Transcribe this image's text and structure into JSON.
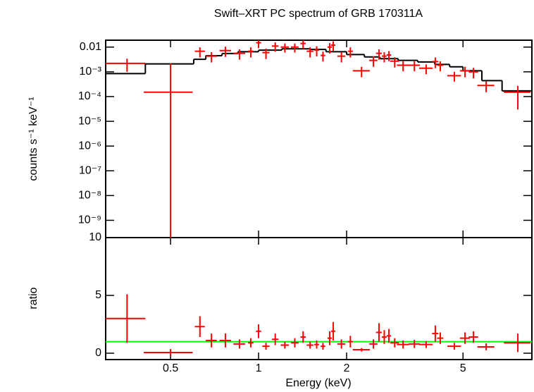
{
  "chart_data": [
    {
      "type": "scatter",
      "title": "Swift–XRT PC spectrum of GRB 170311A",
      "ylabel": "counts s⁻¹ keV⁻¹",
      "log_x": true,
      "log_y": true,
      "color": "#ff0000",
      "xlim": [
        0.3,
        8.6
      ],
      "ylim": [
        2e-10,
        0.019
      ],
      "yticks": [
        0.01,
        {
          "value": 0.001,
          "label": "10⁻³"
        },
        {
          "value": 0.0001,
          "label": "10⁻⁴"
        },
        {
          "value": 1e-05,
          "label": "10⁻⁵"
        },
        {
          "value": 1e-06,
          "label": "10⁻⁶"
        },
        {
          "value": 1e-07,
          "label": "10⁻⁷"
        },
        {
          "value": 1e-08,
          "label": "10⁻⁸"
        },
        {
          "value": 1e-09,
          "label": "10⁻⁹"
        }
      ],
      "x": [
        0.355,
        0.5,
        0.63,
        0.69,
        0.77,
        0.86,
        0.94,
        1.0,
        1.06,
        1.14,
        1.23,
        1.33,
        1.42,
        1.5,
        1.58,
        1.66,
        1.75,
        1.8,
        1.92,
        2.06,
        2.25,
        2.47,
        2.58,
        2.69,
        2.79,
        2.92,
        3.12,
        3.41,
        3.74,
        4.02,
        4.18,
        4.67,
        5.08,
        5.43,
        6.0,
        7.7
      ],
      "xerr": [
        0.055,
        0.095,
        0.025,
        0.03,
        0.035,
        0.04,
        0.02,
        0.02,
        0.03,
        0.03,
        0.04,
        0.04,
        0.03,
        0.04,
        0.03,
        0.03,
        0.03,
        0.03,
        0.06,
        0.04,
        0.15,
        0.08,
        0.06,
        0.05,
        0.05,
        0.1,
        0.15,
        0.15,
        0.2,
        0.1,
        0.1,
        0.25,
        0.2,
        0.2,
        0.4,
        0.8
      ],
      "values": [
        0.0022,
        0.00015,
        0.0068,
        0.0043,
        0.0072,
        0.0056,
        0.0068,
        0.015,
        0.006,
        0.011,
        0.01,
        0.01,
        0.014,
        0.0068,
        0.0075,
        0.0046,
        0.01,
        0.012,
        0.0043,
        0.0068,
        0.0011,
        0.0029,
        0.0056,
        0.0043,
        0.0048,
        0.0027,
        0.00185,
        0.00185,
        0.0014,
        0.0026,
        0.00185,
        0.0007,
        0.0011,
        0.001,
        0.00028,
        0.00015
      ],
      "yerr": [
        0.0012,
        0.00205,
        0.003,
        0.0019,
        0.0032,
        0.0025,
        0.003,
        0.006,
        0.0027,
        0.0045,
        0.004,
        0.004,
        0.0055,
        0.003,
        0.0033,
        0.002,
        0.0045,
        0.005,
        0.0019,
        0.003,
        0.0005,
        0.0013,
        0.0025,
        0.0019,
        0.0021,
        0.0012,
        0.0008,
        0.0008,
        0.0006,
        0.0012,
        0.0008,
        0.0003,
        0.0005,
        0.00045,
        0.00013,
        0.00012
      ],
      "model": {
        "color": "#000000",
        "edges": [
          0.3,
          0.41,
          0.6,
          0.66,
          0.75,
          0.85,
          1.0,
          1.2,
          1.5,
          1.7,
          2.0,
          2.3,
          2.6,
          3.0,
          3.5,
          4.0,
          4.5,
          5.0,
          5.8,
          6.8,
          8.6
        ],
        "values": [
          0.00085,
          0.0021,
          0.0032,
          0.0045,
          0.0055,
          0.0065,
          0.0075,
          0.0085,
          0.008,
          0.0065,
          0.005,
          0.004,
          0.0034,
          0.0029,
          0.0025,
          0.002,
          0.0016,
          0.0011,
          0.00044,
          0.00017
        ]
      }
    },
    {
      "type": "scatter",
      "ylabel": "ratio",
      "xlabel": "Energy (keV)",
      "log_x": true,
      "color": "#ff0000",
      "xlim": [
        0.3,
        8.6
      ],
      "ylim": [
        -0.55,
        10
      ],
      "xticks": [
        0.5,
        1,
        2,
        5
      ],
      "yticks": [
        0,
        5,
        10
      ],
      "reference": {
        "value": 1,
        "color": "#00ff00"
      },
      "x": [
        0.355,
        0.5,
        0.63,
        0.69,
        0.77,
        0.86,
        0.94,
        1.0,
        1.06,
        1.14,
        1.23,
        1.33,
        1.42,
        1.5,
        1.58,
        1.66,
        1.75,
        1.8,
        1.92,
        2.06,
        2.25,
        2.47,
        2.58,
        2.69,
        2.79,
        2.92,
        3.12,
        3.41,
        3.74,
        4.02,
        4.18,
        4.67,
        5.08,
        5.43,
        6.0,
        7.7
      ],
      "xerr": [
        0.055,
        0.095,
        0.025,
        0.03,
        0.035,
        0.04,
        0.02,
        0.02,
        0.03,
        0.03,
        0.04,
        0.04,
        0.03,
        0.04,
        0.03,
        0.03,
        0.03,
        0.03,
        0.06,
        0.04,
        0.15,
        0.08,
        0.06,
        0.05,
        0.05,
        0.1,
        0.15,
        0.15,
        0.2,
        0.1,
        0.1,
        0.25,
        0.2,
        0.2,
        0.4,
        0.8
      ],
      "values": [
        3.0,
        0.06,
        2.3,
        1.1,
        1.1,
        0.8,
        0.9,
        1.9,
        0.6,
        1.2,
        0.7,
        0.9,
        1.4,
        0.7,
        0.75,
        0.6,
        1.3,
        1.9,
        0.8,
        1.0,
        0.3,
        0.8,
        1.8,
        1.4,
        1.5,
        0.9,
        0.75,
        0.8,
        0.75,
        1.7,
        1.3,
        0.6,
        1.3,
        1.4,
        0.55,
        0.9
      ],
      "yerr": [
        2.1,
        0.3,
        0.9,
        0.6,
        0.6,
        0.4,
        0.4,
        0.6,
        0.3,
        0.5,
        0.3,
        0.4,
        0.5,
        0.3,
        0.35,
        0.3,
        0.6,
        0.8,
        0.4,
        0.5,
        0.15,
        0.4,
        0.8,
        0.6,
        0.6,
        0.4,
        0.35,
        0.35,
        0.3,
        0.7,
        0.5,
        0.3,
        0.5,
        0.5,
        0.3,
        0.8
      ]
    }
  ]
}
